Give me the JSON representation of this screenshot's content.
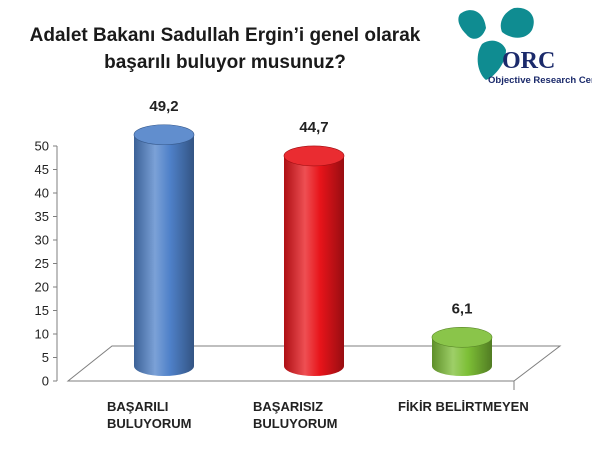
{
  "title_line1": "Adalet Bakanı Sadullah Ergin’i genel olarak",
  "title_line2": "başarılı buluyor musunuz?",
  "logo": {
    "mark": "ORC",
    "subtitle": "Objective Research Center",
    "colors": {
      "teal": "#0f8c91",
      "navy": "#1b2a6b"
    }
  },
  "chart_data": {
    "type": "bar",
    "style": "3d-cylinder",
    "categories": [
      [
        "BAŞARILI",
        "BULUYORUM"
      ],
      [
        "BAŞARISIZ",
        "BULUYORUM"
      ],
      [
        "FİKİR BELİRTMEYEN"
      ]
    ],
    "values": [
      49.2,
      44.7,
      6.1
    ],
    "value_labels": [
      "49,2",
      "44,7",
      "6,1"
    ],
    "colors": [
      "#4f81c9",
      "#e8141a",
      "#7dbf36"
    ],
    "ylim": [
      0,
      50
    ],
    "yticks": [
      0,
      5,
      10,
      15,
      20,
      25,
      30,
      35,
      40,
      45,
      50
    ],
    "grid": false,
    "legend": "none"
  }
}
